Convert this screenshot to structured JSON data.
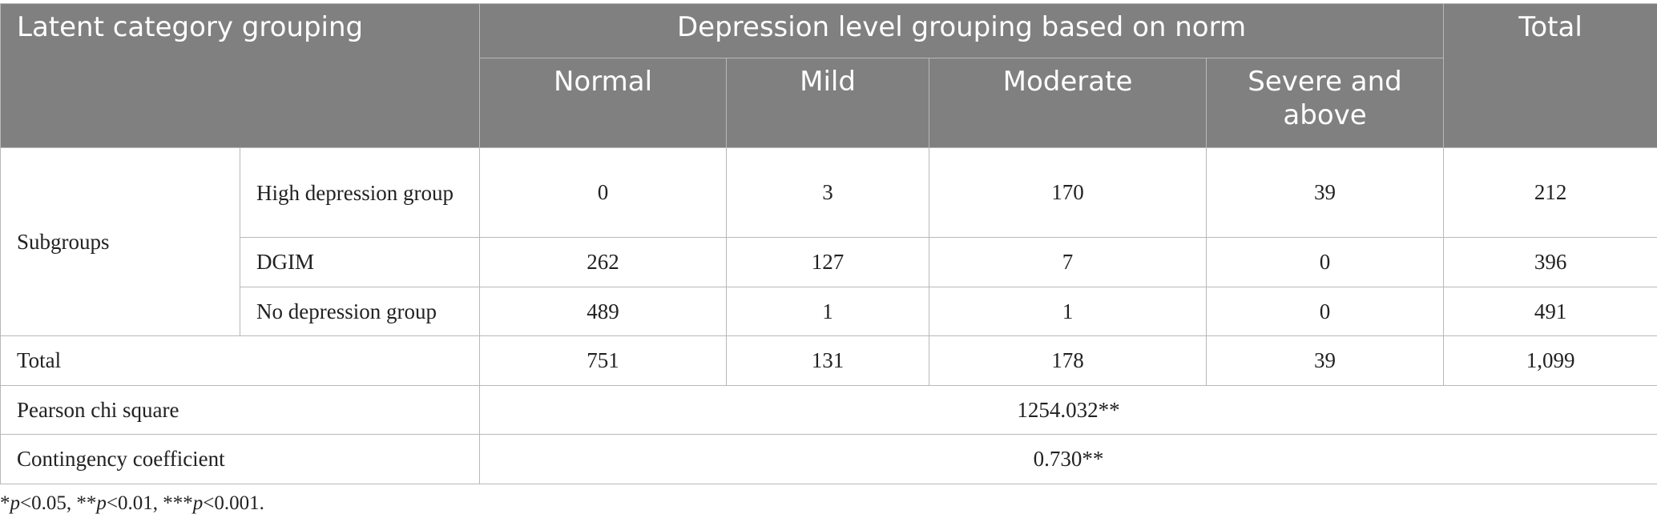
{
  "table": {
    "header": {
      "latent": "Latent category grouping",
      "depression_group": "Depression level grouping based on norm",
      "total": "Total",
      "levels": [
        "Normal",
        "Mild",
        "Moderate",
        "Severe and above"
      ]
    },
    "subgroups_label": "Subgroups",
    "rows": [
      {
        "name": "High depression group",
        "values": [
          "0",
          "3",
          "170",
          "39"
        ],
        "total": "212"
      },
      {
        "name": "DGIM",
        "values": [
          "262",
          "127",
          "7",
          "0"
        ],
        "total": "396"
      },
      {
        "name": "No depression group",
        "values": [
          "489",
          "1",
          "1",
          "0"
        ],
        "total": "491"
      }
    ],
    "total_row": {
      "label": "Total",
      "values": [
        "751",
        "131",
        "178",
        "39"
      ],
      "total": "1,099"
    },
    "pearson": {
      "label": "Pearson chi square",
      "value": "1254.032**"
    },
    "contingency": {
      "label": "Contingency coefficient",
      "value": "0.730**"
    }
  },
  "footnote": {
    "star1": "*",
    "p1": "p",
    "t1": "<0.05, **",
    "p2": "p",
    "t2": "<0.01, ***",
    "p3": "p",
    "t3": "<0.001."
  }
}
